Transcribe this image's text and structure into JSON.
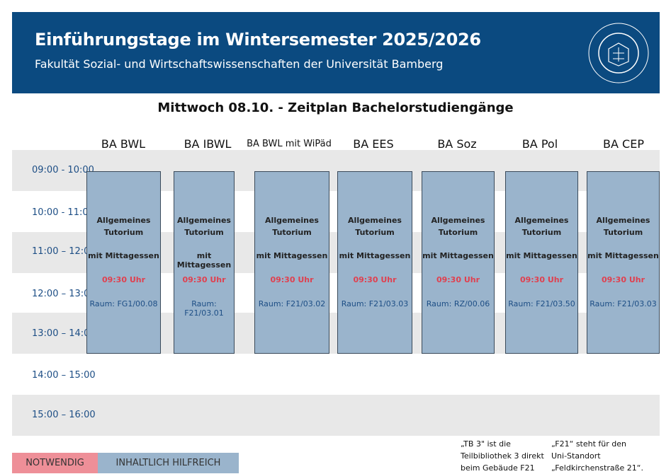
{
  "header": {
    "title": "Einführungstage im Wintersemester 2025/2026",
    "subtitle": "Fakultät Sozial- und Wirtschaftswissenschaften der Universität Bamberg",
    "logo_text": "OTTO-FRIEDRICH-UNIVERSITÄT BAMBERG"
  },
  "heading": "Mittwoch 08.10. - Zeitplan Bachelorstudiengänge",
  "programs": [
    "BA BWL",
    "BA IBWL",
    "BA BWL mit WiPäd",
    "BA EES",
    "BA Soz",
    "BA Pol",
    "BA CEP"
  ],
  "time_slots": [
    "09:00 - 10:00",
    "10:00 - 11:00",
    "11:00 – 12:00",
    "12:00 – 13:00",
    "13:00 – 14:00",
    "14:00 – 15:00",
    "15:00 – 16:00"
  ],
  "event": {
    "title_line1": "Allgemeines",
    "title_line2": "Tutorium",
    "subtitle": "mit Mittagessen",
    "time": "09:30 Uhr"
  },
  "rooms": [
    "Raum: FG1/00.08",
    "Raum: F21/03.01",
    "Raum: F21/03.02",
    "Raum: F21/03.03",
    "Raum: RZ/00.06",
    "Raum: F21/03.50",
    "Raum: F21/03.03"
  ],
  "legend": {
    "required": "NOTWENDIG",
    "helpful": "INHALTLICH HILFREICH",
    "required_color": "#ee8f98",
    "helpful_color": "#9ab4cc"
  },
  "notes": [
    [
      "„TB 3\" ist die",
      "Teilbibliothek 3 direkt",
      "beim Gebäude F21"
    ],
    [
      "„F21“ steht für den",
      "Uni-Standort",
      "„Feldkirchenstraße 21“."
    ]
  ]
}
